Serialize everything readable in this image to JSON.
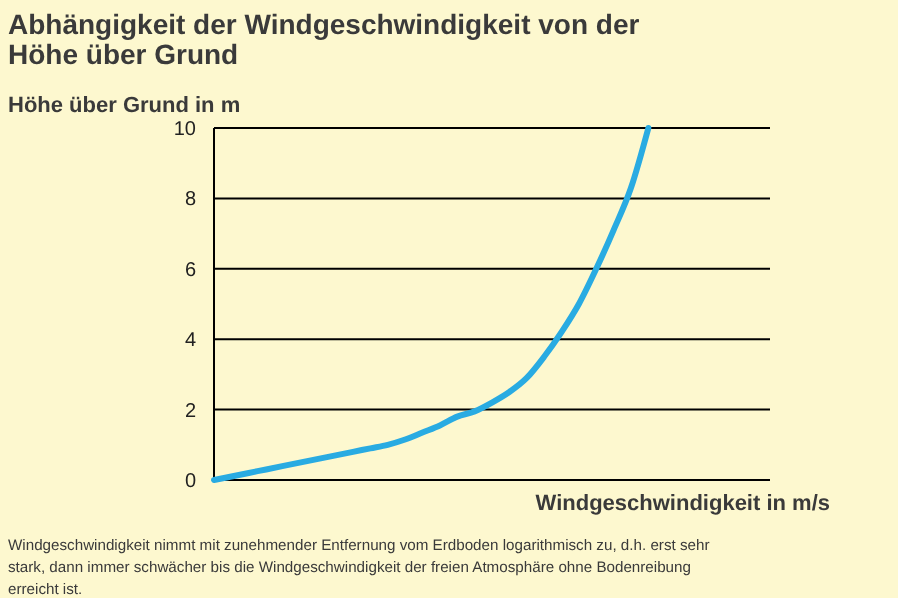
{
  "chart_data": {
    "type": "line",
    "title": "Abhängigkeit der Windgeschwindigkeit von der Höhe über Grund",
    "ylabel": "Höhe über Grund in m",
    "xlabel": "Windgeschwindigkeit in m/s",
    "annotations": [
      "Windgeschwindigkeit nimmt mit zunehmender Entfernung vom Erdboden logarithmisch zu, d.h. erst sehr stark, dann immer schwächer bis die Windgeschwindigkeit der freien Atmosphäre ohne Bodenreibung erreicht ist."
    ],
    "categories": [
      null,
      null,
      null,
      null,
      null,
      null,
      null,
      null,
      null,
      null,
      null,
      null,
      null,
      null,
      null,
      null,
      null,
      null,
      null,
      null,
      null,
      null,
      null,
      null,
      null,
      null,
      null,
      null,
      null,
      null,
      null,
      null,
      null
    ],
    "series": [
      {
        "color": "#29abe2",
        "values": [
          0,
          0.1,
          0.2,
          0.3,
          0.4,
          0.5,
          0.6,
          0.7,
          0.8,
          0.9,
          1.0,
          1.15,
          1.35,
          1.55,
          1.8,
          1.95,
          2.2,
          2.5,
          2.9,
          3.5,
          4.2,
          5.0,
          6.0,
          7.1,
          8.3,
          10,
          null,
          null,
          null,
          null,
          null,
          null,
          null
        ]
      }
    ],
    "ylim": [
      0,
      10
    ],
    "yticks": [
      0,
      2,
      4,
      6,
      8,
      10
    ],
    "grid": "y",
    "tick_labels": "y",
    "marker": "none",
    "line_style": "solid"
  }
}
